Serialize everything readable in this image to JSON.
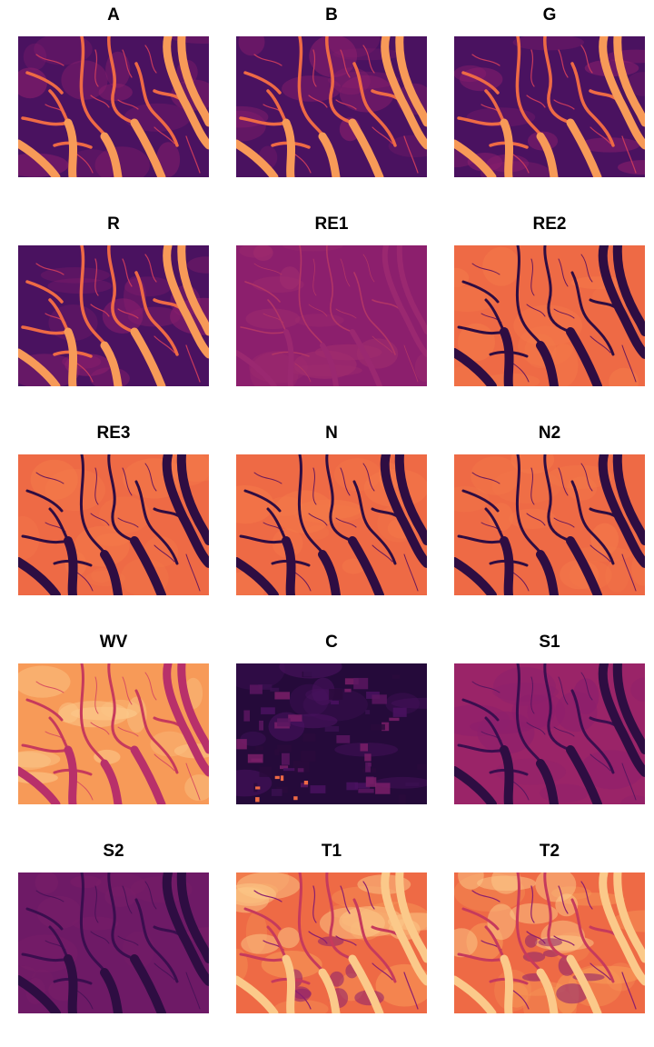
{
  "panels": [
    {
      "label": "A",
      "theme": "dark-low-rivers-bright"
    },
    {
      "label": "B",
      "theme": "dark-low-rivers-bright"
    },
    {
      "label": "G",
      "theme": "dark-low-rivers-bright"
    },
    {
      "label": "R",
      "theme": "dark-low-rivers-bright"
    },
    {
      "label": "RE1",
      "theme": "flat-magenta"
    },
    {
      "label": "RE2",
      "theme": "land-bright-rivers-dark"
    },
    {
      "label": "RE3",
      "theme": "land-bright-rivers-dark"
    },
    {
      "label": "N",
      "theme": "land-bright-rivers-dark"
    },
    {
      "label": "N2",
      "theme": "land-bright-rivers-dark"
    },
    {
      "label": "WV",
      "theme": "pale-land-rivers-magenta"
    },
    {
      "label": "C",
      "theme": "dark-patchy"
    },
    {
      "label": "S1",
      "theme": "magenta-rivers-dark"
    },
    {
      "label": "S2",
      "theme": "dim-magenta-rivers-dark"
    },
    {
      "label": "T1",
      "theme": "thermal-orange"
    },
    {
      "label": "T2",
      "theme": "thermal-orange"
    }
  ],
  "palette": {
    "dark": "#2e0d42",
    "deep_purple": "#4a1260",
    "magenta": "#8c1f6d",
    "rose": "#c63a5c",
    "orange": "#ee6a45",
    "light_orange": "#f79a58",
    "pale": "#fbc98a"
  }
}
